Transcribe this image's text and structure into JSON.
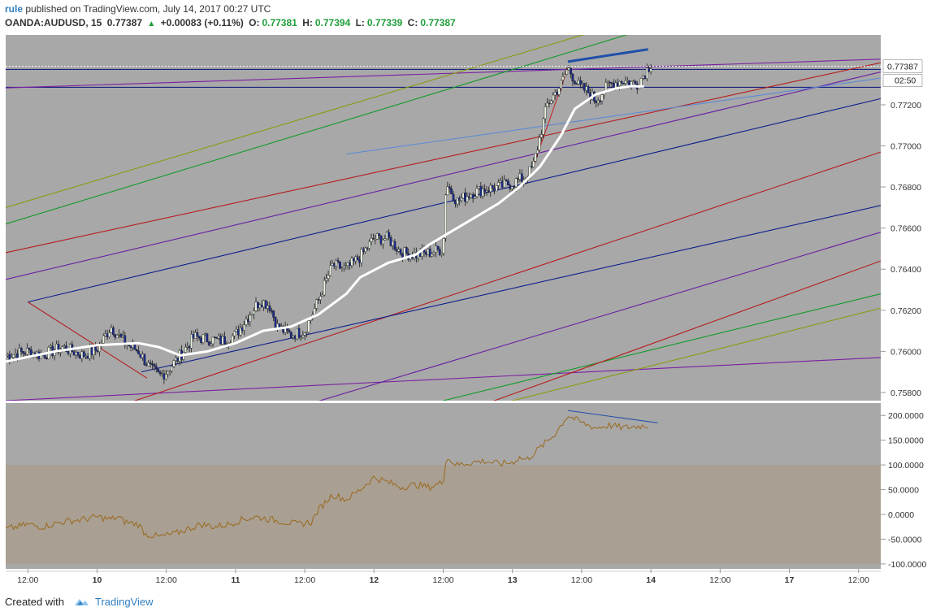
{
  "header": {
    "user": "rule",
    "published_text": "published on TradingView.com, July 14, 2017 00:27 UTC",
    "symbol": "OANDA:AUDUSD, 15",
    "last": "0.77387",
    "change": "+0.00083 (+0.11%)",
    "open_label": "O:",
    "open": "0.77381",
    "high_label": "H:",
    "high": "0.77394",
    "low_label": "L:",
    "low": "0.77339",
    "close_label": "C:",
    "close": "0.77387"
  },
  "footer": {
    "created_with": "Created with",
    "brand": "TradingView"
  },
  "colors": {
    "plot_bg": "#a8a8a8",
    "osc_band": "#a99f92",
    "price_line": "#1e1e1e",
    "sma": "#ffffff",
    "cci": "#9a6a1e",
    "accent": "#2f7fc1"
  },
  "chart_data": [
    {
      "type": "candlestick",
      "title": "OANDA:AUDUSD, 15",
      "y_ticks": [
        "0.77200",
        "0.77000",
        "0.76800",
        "0.76600",
        "0.76400",
        "0.76200",
        "0.76000",
        "0.75800"
      ],
      "ylim": [
        0.7576,
        0.7754
      ],
      "last_price_label": "0.77387",
      "countdown_label": "02:50",
      "x_ticks": [
        "12:00",
        "10",
        "12:00",
        "11",
        "12:00",
        "12",
        "12:00",
        "13",
        "12:00",
        "14",
        "12:00",
        "17",
        "12:00"
      ],
      "x_positions_days": [
        -0.5,
        0,
        0.5,
        1,
        1.5,
        2,
        2.5,
        3,
        3.5,
        4,
        4.5,
        5,
        5.5
      ],
      "xlim": [
        -0.66,
        5.66
      ],
      "price_path": [
        [
          -0.66,
          0.7598
        ],
        [
          -0.5,
          0.76
        ],
        [
          -0.4,
          0.7598
        ],
        [
          -0.25,
          0.7602
        ],
        [
          -0.1,
          0.7598
        ],
        [
          0.0,
          0.7601
        ],
        [
          0.1,
          0.7612
        ],
        [
          0.2,
          0.7604
        ],
        [
          0.3,
          0.76
        ],
        [
          0.38,
          0.7592
        ],
        [
          0.45,
          0.7588
        ],
        [
          0.5,
          0.759
        ],
        [
          0.6,
          0.7598
        ],
        [
          0.7,
          0.7607
        ],
        [
          0.8,
          0.7606
        ],
        [
          0.9,
          0.7605
        ],
        [
          1.0,
          0.7608
        ],
        [
          1.1,
          0.7618
        ],
        [
          1.18,
          0.7625
        ],
        [
          1.25,
          0.7622
        ],
        [
          1.3,
          0.7612
        ],
        [
          1.4,
          0.7608
        ],
        [
          1.5,
          0.761
        ],
        [
          1.6,
          0.7625
        ],
        [
          1.7,
          0.7642
        ],
        [
          1.8,
          0.764
        ],
        [
          1.9,
          0.7646
        ],
        [
          2.0,
          0.7655
        ],
        [
          2.1,
          0.7655
        ],
        [
          2.2,
          0.7648
        ],
        [
          2.3,
          0.7647
        ],
        [
          2.4,
          0.7648
        ],
        [
          2.5,
          0.765
        ],
        [
          2.52,
          0.7682
        ],
        [
          2.6,
          0.7673
        ],
        [
          2.7,
          0.7677
        ],
        [
          2.8,
          0.7679
        ],
        [
          2.9,
          0.768
        ],
        [
          3.0,
          0.7682
        ],
        [
          3.1,
          0.7685
        ],
        [
          3.15,
          0.769
        ],
        [
          3.25,
          0.772
        ],
        [
          3.35,
          0.773
        ],
        [
          3.4,
          0.7738
        ],
        [
          3.48,
          0.7729
        ],
        [
          3.55,
          0.7726
        ],
        [
          3.6,
          0.7722
        ],
        [
          3.7,
          0.773
        ],
        [
          3.8,
          0.7732
        ],
        [
          3.9,
          0.773
        ],
        [
          4.0,
          0.774
        ],
        [
          4.0,
          0.7738
        ]
      ],
      "series": [
        {
          "name": "SMA",
          "values": [
            [
              -0.66,
              0.7595
            ],
            [
              -0.3,
              0.76
            ],
            [
              0.0,
              0.7603
            ],
            [
              0.3,
              0.7604
            ],
            [
              0.45,
              0.7602
            ],
            [
              0.6,
              0.7598
            ],
            [
              0.8,
              0.76
            ],
            [
              1.0,
              0.7604
            ],
            [
              1.2,
              0.761
            ],
            [
              1.4,
              0.7612
            ],
            [
              1.6,
              0.7618
            ],
            [
              1.8,
              0.7628
            ],
            [
              1.9,
              0.7636
            ],
            [
              2.1,
              0.7643
            ],
            [
              2.3,
              0.7647
            ],
            [
              2.4,
              0.7652
            ],
            [
              2.55,
              0.7658
            ],
            [
              2.7,
              0.7664
            ],
            [
              2.9,
              0.7672
            ],
            [
              3.05,
              0.768
            ],
            [
              3.2,
              0.769
            ],
            [
              3.35,
              0.7705
            ],
            [
              3.45,
              0.7718
            ],
            [
              3.6,
              0.7725
            ],
            [
              3.75,
              0.7728
            ],
            [
              3.85,
              0.7729
            ],
            [
              3.95,
              0.7729
            ]
          ]
        }
      ],
      "drawn_lines": [
        {
          "color": "#1a237e",
          "points": [
            [
              -0.66,
              0.77372
            ],
            [
              5.66,
              0.77372
            ]
          ]
        },
        {
          "color": "#1a237e",
          "points": [
            [
              -0.66,
              0.77285
            ],
            [
              5.66,
              0.77285
            ]
          ]
        },
        {
          "color": "#7b1fa2",
          "points": [
            [
              -0.66,
              0.77282
            ],
            [
              5.66,
              0.77422
            ]
          ]
        },
        {
          "color": "#7b1fa2",
          "points": [
            [
              -0.66,
              0.7576
            ],
            [
              5.66,
              0.7597
            ]
          ]
        },
        {
          "color": "#8a9a10",
          "points": [
            [
              -0.66,
              0.767
            ],
            [
              4.3,
              0.777
            ]
          ]
        },
        {
          "color": "#129a2a",
          "points": [
            [
              -0.66,
              0.7662
            ],
            [
              4.6,
              0.777
            ]
          ]
        },
        {
          "color": "#129a2a",
          "points": [
            [
              2.5,
              0.7576
            ],
            [
              5.66,
              0.7628
            ]
          ]
        },
        {
          "color": "#8a9a10",
          "points": [
            [
              3.0,
              0.7576
            ],
            [
              5.66,
              0.7621
            ]
          ]
        },
        {
          "color": "#b71c1c",
          "points": [
            [
              -0.66,
              0.7648
            ],
            [
              5.66,
              0.77405
            ]
          ]
        },
        {
          "color": "#b71c1c",
          "points": [
            [
              -0.66,
              0.7555
            ],
            [
              5.66,
              0.7697
            ]
          ]
        },
        {
          "color": "#b71c1c",
          "points": [
            [
              -0.66,
              0.749
            ],
            [
              5.66,
              0.7644
            ]
          ]
        },
        {
          "color": "#6a1fa2",
          "points": [
            [
              -0.66,
              0.7635
            ],
            [
              5.66,
              0.7736
            ]
          ]
        },
        {
          "color": "#6a1fa2",
          "points": [
            [
              -0.66,
              0.753
            ],
            [
              5.66,
              0.7658
            ]
          ]
        },
        {
          "color": "#0d1f8a",
          "points": [
            [
              0.32,
              0.759
            ],
            [
              5.66,
              0.7671
            ]
          ]
        },
        {
          "color": "#0d1f8a",
          "points": [
            [
              -0.5,
              0.7624
            ],
            [
              5.66,
              0.7723
            ]
          ]
        },
        {
          "color": "#b71c1c",
          "points": [
            [
              -0.5,
              0.7624
            ],
            [
              0.36,
              0.7587
            ]
          ]
        },
        {
          "color": "#5c8ad6",
          "points": [
            [
              1.8,
              0.7696
            ],
            [
              5.66,
              0.7733
            ]
          ]
        },
        {
          "color": "#1f4fa8",
          "width": 3,
          "points": [
            [
              3.4,
              0.7741
            ],
            [
              3.98,
              0.7747
            ]
          ]
        },
        {
          "color": "#c62828",
          "points": [
            [
              3.15,
              0.769
            ],
            [
              3.4,
              0.7738
            ]
          ]
        }
      ]
    },
    {
      "type": "line",
      "title": "",
      "y_ticks": [
        "200.0000",
        "150.0000",
        "100.0000",
        "50.0000",
        "0.0000",
        "-50.0000",
        "-100.0000"
      ],
      "ylim": [
        -110,
        225
      ],
      "band": [
        -100,
        100
      ],
      "series": [
        {
          "name": "",
          "values": [
            [
              -0.66,
              -30
            ],
            [
              -0.5,
              -20
            ],
            [
              -0.4,
              -25
            ],
            [
              -0.25,
              -15
            ],
            [
              -0.1,
              -10
            ],
            [
              0.0,
              -5
            ],
            [
              0.1,
              -10
            ],
            [
              0.15,
              -5
            ],
            [
              0.2,
              -15
            ],
            [
              0.3,
              -20
            ],
            [
              0.35,
              -40
            ],
            [
              0.45,
              -45
            ],
            [
              0.55,
              -40
            ],
            [
              0.65,
              -30
            ],
            [
              0.75,
              -20
            ],
            [
              0.85,
              -25
            ],
            [
              0.95,
              -20
            ],
            [
              1.05,
              -10
            ],
            [
              1.15,
              -5
            ],
            [
              1.25,
              -10
            ],
            [
              1.35,
              -15
            ],
            [
              1.45,
              -20
            ],
            [
              1.55,
              -15
            ],
            [
              1.6,
              10
            ],
            [
              1.7,
              40
            ],
            [
              1.8,
              30
            ],
            [
              1.9,
              50
            ],
            [
              2.0,
              75
            ],
            [
              2.1,
              65
            ],
            [
              2.2,
              55
            ],
            [
              2.3,
              60
            ],
            [
              2.4,
              55
            ],
            [
              2.5,
              65
            ],
            [
              2.52,
              115
            ],
            [
              2.6,
              100
            ],
            [
              2.7,
              105
            ],
            [
              2.8,
              108
            ],
            [
              2.9,
              102
            ],
            [
              3.0,
              105
            ],
            [
              3.05,
              115
            ],
            [
              3.1,
              110
            ],
            [
              3.2,
              135
            ],
            [
              3.3,
              160
            ],
            [
              3.4,
              200
            ],
            [
              3.5,
              185
            ],
            [
              3.6,
              175
            ],
            [
              3.7,
              180
            ],
            [
              3.8,
              175
            ],
            [
              3.9,
              178
            ],
            [
              3.98,
              180
            ]
          ]
        }
      ],
      "drawn_lines": [
        {
          "color": "#1f4fa8",
          "points": [
            [
              3.4,
              210
            ],
            [
              4.05,
              185
            ]
          ]
        }
      ]
    }
  ]
}
